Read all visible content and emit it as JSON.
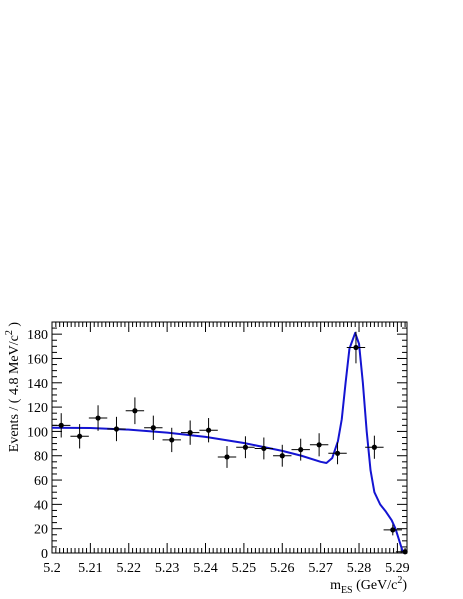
{
  "chart_data": {
    "type": "scatter",
    "title": "",
    "xlabel": {
      "base": "m",
      "sub": "ES",
      "rest": " (GeV/c",
      "sup": "2",
      "close": ")"
    },
    "ylabel": {
      "text": "Events / ( 4.8 MeV/c",
      "sup": "2",
      "close": " )"
    },
    "xlim": [
      5.2,
      5.2925
    ],
    "ylim": [
      0,
      190
    ],
    "x_ticks": [
      5.2,
      5.21,
      5.22,
      5.23,
      5.24,
      5.25,
      5.26,
      5.27,
      5.28,
      5.29
    ],
    "x_tick_labels": [
      "5.2",
      "5.21",
      "5.22",
      "5.23",
      "5.24",
      "5.25",
      "5.26",
      "5.27",
      "5.28",
      "5.29"
    ],
    "y_ticks": [
      0,
      20,
      40,
      60,
      80,
      100,
      120,
      140,
      160,
      180
    ],
    "y_tick_labels": [
      "0",
      "20",
      "40",
      "60",
      "80",
      "100",
      "120",
      "140",
      "160",
      "180"
    ],
    "colors": {
      "data": "#000000",
      "fit": "#1414d2"
    },
    "series": [
      {
        "kind": "data-points-with-errors",
        "x_half_width": 0.0024,
        "points": [
          {
            "x": 5.2024,
            "y": 105,
            "err": 10
          },
          {
            "x": 5.2072,
            "y": 96,
            "err": 10
          },
          {
            "x": 5.212,
            "y": 111,
            "err": 10.5
          },
          {
            "x": 5.2168,
            "y": 102,
            "err": 10
          },
          {
            "x": 5.2216,
            "y": 117,
            "err": 11
          },
          {
            "x": 5.2264,
            "y": 103,
            "err": 10
          },
          {
            "x": 5.2312,
            "y": 93,
            "err": 10
          },
          {
            "x": 5.236,
            "y": 99,
            "err": 10
          },
          {
            "x": 5.2408,
            "y": 101,
            "err": 10
          },
          {
            "x": 5.2456,
            "y": 79,
            "err": 9
          },
          {
            "x": 5.2504,
            "y": 87,
            "err": 9
          },
          {
            "x": 5.2552,
            "y": 86,
            "err": 9
          },
          {
            "x": 5.26,
            "y": 80,
            "err": 9
          },
          {
            "x": 5.2648,
            "y": 85,
            "err": 9
          },
          {
            "x": 5.2696,
            "y": 89,
            "err": 9.5
          },
          {
            "x": 5.2744,
            "y": 82,
            "err": 9
          },
          {
            "x": 5.2792,
            "y": 169,
            "err": 13
          },
          {
            "x": 5.284,
            "y": 87,
            "err": 9.5
          },
          {
            "x": 5.2888,
            "y": 19,
            "err": 4.5
          },
          {
            "x": 5.292,
            "y": 1,
            "err": 1
          }
        ]
      },
      {
        "kind": "fit-curve",
        "points": [
          {
            "x": 5.2,
            "y": 103.0
          },
          {
            "x": 5.21,
            "y": 102.8
          },
          {
            "x": 5.22,
            "y": 101.5
          },
          {
            "x": 5.23,
            "y": 99.0
          },
          {
            "x": 5.24,
            "y": 95.5
          },
          {
            "x": 5.25,
            "y": 90.5
          },
          {
            "x": 5.26,
            "y": 84.0
          },
          {
            "x": 5.265,
            "y": 80.0
          },
          {
            "x": 5.27,
            "y": 75.0
          },
          {
            "x": 5.2715,
            "y": 74.0
          },
          {
            "x": 5.273,
            "y": 78.0
          },
          {
            "x": 5.2745,
            "y": 92.0
          },
          {
            "x": 5.2755,
            "y": 110.0
          },
          {
            "x": 5.2765,
            "y": 140.0
          },
          {
            "x": 5.2775,
            "y": 168.0
          },
          {
            "x": 5.279,
            "y": 181.0
          },
          {
            "x": 5.28,
            "y": 172.0
          },
          {
            "x": 5.281,
            "y": 140.0
          },
          {
            "x": 5.282,
            "y": 100.0
          },
          {
            "x": 5.283,
            "y": 68.0
          },
          {
            "x": 5.284,
            "y": 50.0
          },
          {
            "x": 5.2855,
            "y": 40.0
          },
          {
            "x": 5.287,
            "y": 34.0
          },
          {
            "x": 5.2885,
            "y": 27.0
          },
          {
            "x": 5.2895,
            "y": 20.0
          },
          {
            "x": 5.2905,
            "y": 10.0
          },
          {
            "x": 5.2912,
            "y": 3.0
          },
          {
            "x": 5.2917,
            "y": 0.0
          }
        ]
      }
    ]
  }
}
